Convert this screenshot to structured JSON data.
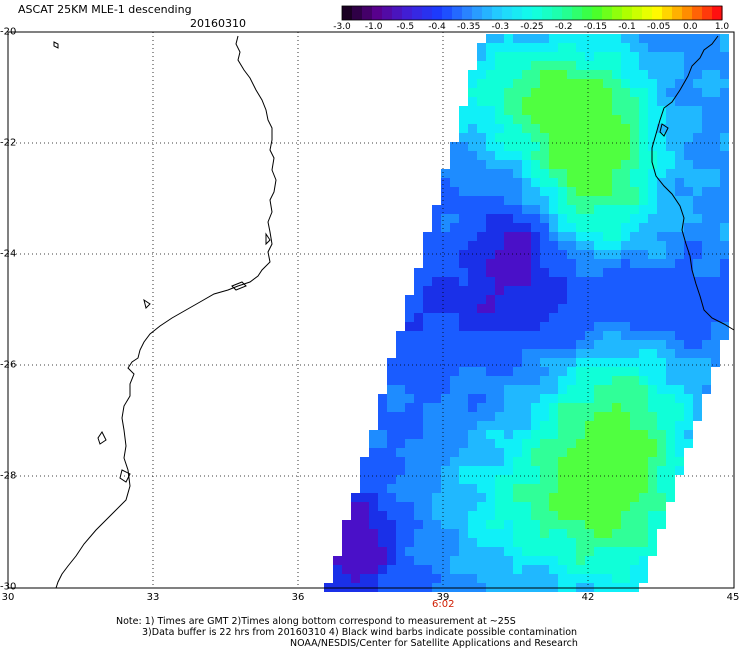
{
  "title": "ASCAT 25KM MLE-1 descending",
  "date": "20160310",
  "colorbar": {
    "labels": [
      "-3.0",
      "-1.0",
      "-0.5",
      "-0.4",
      "-0.35",
      "-0.3",
      "-0.25",
      "-0.2",
      "-0.15",
      "-0.1",
      "-0.05",
      "0.0",
      "1.0"
    ],
    "colors": [
      "#1a0022",
      "#5a0090",
      "#4020d8",
      "#1a3cff",
      "#2b8cff",
      "#22d4ff",
      "#10ffe8",
      "#20ffa0",
      "#40ff30",
      "#a8ff00",
      "#ffff00",
      "#ff9000",
      "#ff1010"
    ]
  },
  "axes": {
    "x_ticks": [
      "30",
      "33",
      "36",
      "39",
      "42",
      "45"
    ],
    "y_ticks": [
      "-20",
      "-22",
      "-24",
      "-26",
      "-28",
      "-30"
    ]
  },
  "time_mark": "6:02",
  "notes": {
    "line1": "Note: 1) Times are GMT 2)Times along bottom correspond to measurement at ~25S",
    "line2": "3)Data buffer is 22 hrs from 20160310 4) Black wind barbs indicate possible contamination",
    "credit": "NOAA/NESDIS/Center for Satellite Applications and Research"
  }
}
